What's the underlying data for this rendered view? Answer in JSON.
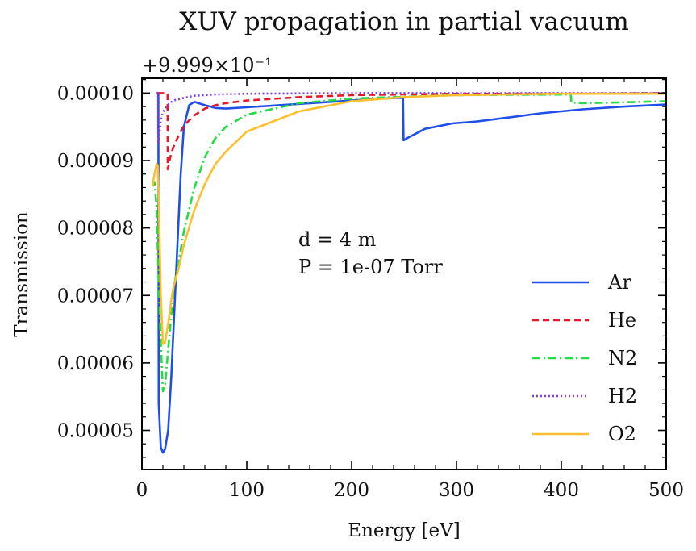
{
  "chart_data": {
    "type": "line",
    "title": "XUV propagation in partial vacuum",
    "offset_text": "+9.999×10⁻¹",
    "xlabel": "Energy [eV]",
    "ylabel": "Transmission",
    "xlim": [
      0,
      500
    ],
    "ylim": [
      4.42e-05,
      0.0001022
    ],
    "x_ticks": [
      0,
      100,
      200,
      300,
      400,
      500
    ],
    "x_tick_labels": [
      "0",
      "100",
      "200",
      "300",
      "400",
      "500"
    ],
    "y_ticks": [
      5e-05,
      6e-05,
      7e-05,
      8e-05,
      9e-05,
      0.0001
    ],
    "y_tick_labels": [
      "0.00005",
      "0.00006",
      "0.00007",
      "0.00008",
      "0.00009",
      "0.00010"
    ],
    "annotations": [
      "d = 4 m",
      "P = 1e-07 Torr"
    ],
    "legend_position": "lower right",
    "grid": false,
    "series": [
      {
        "name": "Ar",
        "color": "#1f4fe8",
        "dash": "solid",
        "points": [
          [
            15,
            0.0001
          ],
          [
            15.7,
            0.0001
          ],
          [
            16,
            5.4e-05
          ],
          [
            18,
            4.75e-05
          ],
          [
            20,
            4.67e-05
          ],
          [
            22,
            4.72e-05
          ],
          [
            25,
            5e-05
          ],
          [
            28,
            5.8e-05
          ],
          [
            31,
            6.8e-05
          ],
          [
            34,
            7.8e-05
          ],
          [
            37,
            8.8e-05
          ],
          [
            40,
            9.5e-05
          ],
          [
            45,
            9.82e-05
          ],
          [
            50,
            9.87e-05
          ],
          [
            60,
            9.82e-05
          ],
          [
            70,
            9.78e-05
          ],
          [
            80,
            9.77e-05
          ],
          [
            100,
            9.79e-05
          ],
          [
            150,
            9.84e-05
          ],
          [
            200,
            9.89e-05
          ],
          [
            230,
            9.92e-05
          ],
          [
            248,
            9.93e-05
          ],
          [
            249,
            9.93e-05
          ],
          [
            249.5,
            9.3e-05
          ],
          [
            255,
            9.35e-05
          ],
          [
            270,
            9.47e-05
          ],
          [
            296,
            9.55e-05
          ],
          [
            320,
            9.58e-05
          ],
          [
            340,
            9.62e-05
          ],
          [
            380,
            9.7e-05
          ],
          [
            420,
            9.76e-05
          ],
          [
            460,
            9.8e-05
          ],
          [
            500,
            9.83e-05
          ]
        ]
      },
      {
        "name": "He",
        "color": "#e41a2b",
        "dash": "8,5",
        "points": [
          [
            15,
            0.0001
          ],
          [
            22,
            0.0001
          ],
          [
            24.5,
            0.0001
          ],
          [
            24.6,
            8.87e-05
          ],
          [
            27,
            9.05e-05
          ],
          [
            30,
            9.2e-05
          ],
          [
            35,
            9.37e-05
          ],
          [
            40,
            9.52e-05
          ],
          [
            50,
            9.67e-05
          ],
          [
            60,
            9.77e-05
          ],
          [
            70,
            9.82e-05
          ],
          [
            80,
            9.85e-05
          ],
          [
            100,
            9.89e-05
          ],
          [
            150,
            9.94e-05
          ],
          [
            200,
            9.97e-05
          ],
          [
            300,
            9.99e-05
          ],
          [
            400,
            9.99e-05
          ],
          [
            500,
            0.0001
          ]
        ]
      },
      {
        "name": "N2",
        "color": "#22dd44",
        "dash": "10,4,2,4",
        "points": [
          [
            10,
            8.62e-05
          ],
          [
            12,
            8.68e-05
          ],
          [
            14,
            8.3e-05
          ],
          [
            16,
            7.2e-05
          ],
          [
            18,
            6.3e-05
          ],
          [
            20,
            5.58e-05
          ],
          [
            22,
            5.65e-05
          ],
          [
            25,
            6.2e-05
          ],
          [
            28,
            6.7e-05
          ],
          [
            30,
            7.1e-05
          ],
          [
            35,
            7.5e-05
          ],
          [
            40,
            7.95e-05
          ],
          [
            50,
            8.6e-05
          ],
          [
            60,
            9.05e-05
          ],
          [
            70,
            9.33e-05
          ],
          [
            80,
            9.5e-05
          ],
          [
            100,
            9.68e-05
          ],
          [
            150,
            9.85e-05
          ],
          [
            200,
            9.92e-05
          ],
          [
            300,
            9.97e-05
          ],
          [
            408,
            9.98e-05
          ],
          [
            409,
            9.98e-05
          ],
          [
            409.5,
            9.86e-05
          ],
          [
            420,
            9.85e-05
          ],
          [
            450,
            9.86e-05
          ],
          [
            500,
            9.88e-05
          ]
        ]
      },
      {
        "name": "H2",
        "color": "#7b3fe4",
        "dash": "2,3",
        "points": [
          [
            14,
            0.0001
          ],
          [
            15.4,
            0.0001
          ],
          [
            15.6,
            9.25e-05
          ],
          [
            18,
            9.6e-05
          ],
          [
            20,
            9.72e-05
          ],
          [
            25,
            9.83e-05
          ],
          [
            30,
            9.89e-05
          ],
          [
            40,
            9.93e-05
          ],
          [
            50,
            9.96e-05
          ],
          [
            70,
            9.98e-05
          ],
          [
            100,
            9.99e-05
          ],
          [
            200,
            0.0001
          ],
          [
            500,
            0.0001
          ]
        ]
      },
      {
        "name": "O2",
        "color": "#fbbf30",
        "dash": "solid",
        "points": [
          [
            10,
            8.62e-05
          ],
          [
            12,
            8.8e-05
          ],
          [
            14,
            8.95e-05
          ],
          [
            15,
            8.93e-05
          ],
          [
            16,
            8.5e-05
          ],
          [
            17,
            7.7e-05
          ],
          [
            18,
            7e-05
          ],
          [
            20,
            6.28e-05
          ],
          [
            22,
            6.3e-05
          ],
          [
            25,
            6.58e-05
          ],
          [
            28,
            6.93e-05
          ],
          [
            30,
            7.12e-05
          ],
          [
            35,
            7.4e-05
          ],
          [
            40,
            7.75e-05
          ],
          [
            50,
            8.27e-05
          ],
          [
            60,
            8.65e-05
          ],
          [
            70,
            8.95e-05
          ],
          [
            80,
            9.13e-05
          ],
          [
            100,
            9.43e-05
          ],
          [
            150,
            9.73e-05
          ],
          [
            200,
            9.88e-05
          ],
          [
            250,
            9.94e-05
          ],
          [
            300,
            9.97e-05
          ],
          [
            400,
            9.99e-05
          ],
          [
            500,
            9.99e-05
          ]
        ]
      }
    ]
  }
}
